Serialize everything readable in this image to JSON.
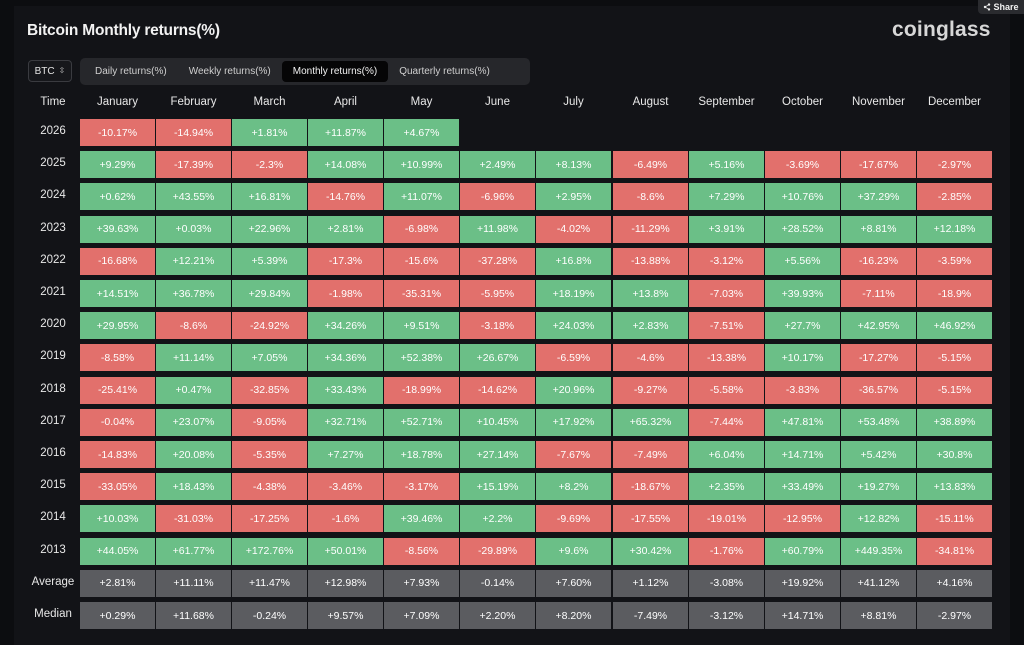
{
  "header": {
    "title": "Bitcoin Monthly returns(%)",
    "brand": "coinglass",
    "share_label": "Share"
  },
  "controls": {
    "asset": "BTC",
    "tabs": [
      "Daily returns(%)",
      "Weekly returns(%)",
      "Monthly returns(%)",
      "Quarterly returns(%)"
    ],
    "active_tab": "Monthly returns(%)"
  },
  "colors": {
    "positive": "#6bbf87",
    "negative": "#e2706c",
    "summary": "#5b5c60",
    "background": "#121317"
  },
  "table": {
    "time_label": "Time",
    "months": [
      "January",
      "February",
      "March",
      "April",
      "May",
      "June",
      "July",
      "August",
      "September",
      "October",
      "November",
      "December"
    ],
    "rows": [
      {
        "year": "2026",
        "values": [
          "-10.17%",
          "-14.94%",
          "+1.81%",
          "+11.87%",
          "+4.67%",
          "",
          "",
          "",
          "",
          "",
          "",
          ""
        ]
      },
      {
        "year": "2025",
        "values": [
          "+9.29%",
          "-17.39%",
          "-2.3%",
          "+14.08%",
          "+10.99%",
          "+2.49%",
          "+8.13%",
          "-6.49%",
          "+5.16%",
          "-3.69%",
          "-17.67%",
          "-2.97%"
        ]
      },
      {
        "year": "2024",
        "values": [
          "+0.62%",
          "+43.55%",
          "+16.81%",
          "-14.76%",
          "+11.07%",
          "-6.96%",
          "+2.95%",
          "-8.6%",
          "+7.29%",
          "+10.76%",
          "+37.29%",
          "-2.85%"
        ]
      },
      {
        "year": "2023",
        "values": [
          "+39.63%",
          "+0.03%",
          "+22.96%",
          "+2.81%",
          "-6.98%",
          "+11.98%",
          "-4.02%",
          "-11.29%",
          "+3.91%",
          "+28.52%",
          "+8.81%",
          "+12.18%"
        ]
      },
      {
        "year": "2022",
        "values": [
          "-16.68%",
          "+12.21%",
          "+5.39%",
          "-17.3%",
          "-15.6%",
          "-37.28%",
          "+16.8%",
          "-13.88%",
          "-3.12%",
          "+5.56%",
          "-16.23%",
          "-3.59%"
        ]
      },
      {
        "year": "2021",
        "values": [
          "+14.51%",
          "+36.78%",
          "+29.84%",
          "-1.98%",
          "-35.31%",
          "-5.95%",
          "+18.19%",
          "+13.8%",
          "-7.03%",
          "+39.93%",
          "-7.11%",
          "-18.9%"
        ]
      },
      {
        "year": "2020",
        "values": [
          "+29.95%",
          "-8.6%",
          "-24.92%",
          "+34.26%",
          "+9.51%",
          "-3.18%",
          "+24.03%",
          "+2.83%",
          "-7.51%",
          "+27.7%",
          "+42.95%",
          "+46.92%"
        ]
      },
      {
        "year": "2019",
        "values": [
          "-8.58%",
          "+11.14%",
          "+7.05%",
          "+34.36%",
          "+52.38%",
          "+26.67%",
          "-6.59%",
          "-4.6%",
          "-13.38%",
          "+10.17%",
          "-17.27%",
          "-5.15%"
        ]
      },
      {
        "year": "2018",
        "values": [
          "-25.41%",
          "+0.47%",
          "-32.85%",
          "+33.43%",
          "-18.99%",
          "-14.62%",
          "+20.96%",
          "-9.27%",
          "-5.58%",
          "-3.83%",
          "-36.57%",
          "-5.15%"
        ]
      },
      {
        "year": "2017",
        "values": [
          "-0.04%",
          "+23.07%",
          "-9.05%",
          "+32.71%",
          "+52.71%",
          "+10.45%",
          "+17.92%",
          "+65.32%",
          "-7.44%",
          "+47.81%",
          "+53.48%",
          "+38.89%"
        ]
      },
      {
        "year": "2016",
        "values": [
          "-14.83%",
          "+20.08%",
          "-5.35%",
          "+7.27%",
          "+18.78%",
          "+27.14%",
          "-7.67%",
          "-7.49%",
          "+6.04%",
          "+14.71%",
          "+5.42%",
          "+30.8%"
        ]
      },
      {
        "year": "2015",
        "values": [
          "-33.05%",
          "+18.43%",
          "-4.38%",
          "-3.46%",
          "-3.17%",
          "+15.19%",
          "+8.2%",
          "-18.67%",
          "+2.35%",
          "+33.49%",
          "+19.27%",
          "+13.83%"
        ]
      },
      {
        "year": "2014",
        "values": [
          "+10.03%",
          "-31.03%",
          "-17.25%",
          "-1.6%",
          "+39.46%",
          "+2.2%",
          "-9.69%",
          "-17.55%",
          "-19.01%",
          "-12.95%",
          "+12.82%",
          "-15.11%"
        ]
      },
      {
        "year": "2013",
        "values": [
          "+44.05%",
          "+61.77%",
          "+172.76%",
          "+50.01%",
          "-8.56%",
          "-29.89%",
          "+9.6%",
          "+30.42%",
          "-1.76%",
          "+60.79%",
          "+449.35%",
          "-34.81%"
        ]
      }
    ],
    "summary": [
      {
        "label": "Average",
        "values": [
          "+2.81%",
          "+11.11%",
          "+11.47%",
          "+12.98%",
          "+7.93%",
          "-0.14%",
          "+7.60%",
          "+1.12%",
          "-3.08%",
          "+19.92%",
          "+41.12%",
          "+4.16%"
        ]
      },
      {
        "label": "Median",
        "values": [
          "+0.29%",
          "+11.68%",
          "-0.24%",
          "+9.57%",
          "+7.09%",
          "+2.20%",
          "+8.20%",
          "-7.49%",
          "-3.12%",
          "+14.71%",
          "+8.81%",
          "-2.97%"
        ]
      }
    ]
  }
}
